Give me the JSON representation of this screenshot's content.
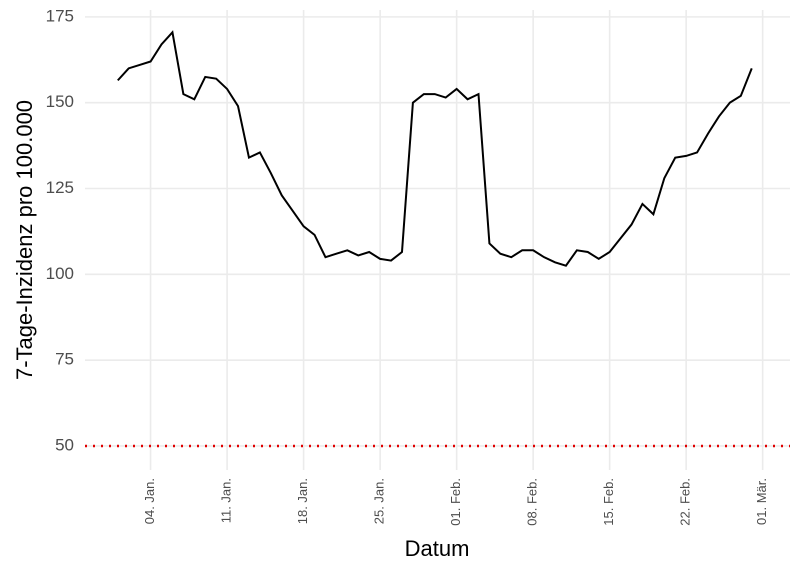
{
  "chart_data": {
    "type": "line",
    "xlabel": "Datum",
    "ylabel": "7-Tage-Inzidenz pro 100.000",
    "x": [
      1,
      2,
      3,
      4,
      5,
      6,
      7,
      8,
      9,
      10,
      11,
      12,
      13,
      14,
      15,
      16,
      17,
      18,
      19,
      20,
      21,
      22,
      23,
      24,
      25,
      26,
      27,
      28,
      29,
      30,
      31,
      32,
      33,
      34,
      35,
      36,
      37,
      38,
      39,
      40,
      41,
      42,
      43,
      44,
      45,
      46,
      47,
      48,
      49,
      50,
      51,
      52,
      53,
      54,
      55,
      56,
      57,
      58,
      59
    ],
    "series": [
      {
        "color": "#000000",
        "values": [
          156.5,
          160,
          161,
          162,
          167,
          170.5,
          152.5,
          151,
          157.5,
          157,
          154,
          149,
          134,
          135.5,
          129.5,
          123,
          118.5,
          114,
          111.5,
          105,
          106,
          107,
          105.5,
          106.5,
          104.5,
          104,
          106.5,
          150,
          152.5,
          152.5,
          151.5,
          154,
          151,
          152.5,
          109,
          106,
          105,
          107,
          107,
          105,
          103.5,
          102.5,
          107,
          106.5,
          104.5,
          106.5,
          110.5,
          114.5,
          120.5,
          117.5,
          128,
          134,
          134.5,
          135.5,
          141,
          146,
          150,
          152,
          160
        ]
      }
    ],
    "xlim": [
      -2,
      62.5
    ],
    "xticks": [
      {
        "value": 4,
        "label": "04. Jan."
      },
      {
        "value": 11,
        "label": "11. Jan."
      },
      {
        "value": 18,
        "label": "18. Jan."
      },
      {
        "value": 25,
        "label": "25. Jan."
      },
      {
        "value": 32,
        "label": "01. Feb."
      },
      {
        "value": 39,
        "label": "08. Feb."
      },
      {
        "value": 46,
        "label": "15. Feb."
      },
      {
        "value": 53,
        "label": "22. Feb."
      },
      {
        "value": 60,
        "label": "01. Mär."
      }
    ],
    "ylim": [
      43,
      177
    ],
    "yticks": [
      50,
      75,
      100,
      125,
      150,
      175
    ],
    "grid": true,
    "hline": {
      "value": 50,
      "color": "#e00000"
    }
  }
}
